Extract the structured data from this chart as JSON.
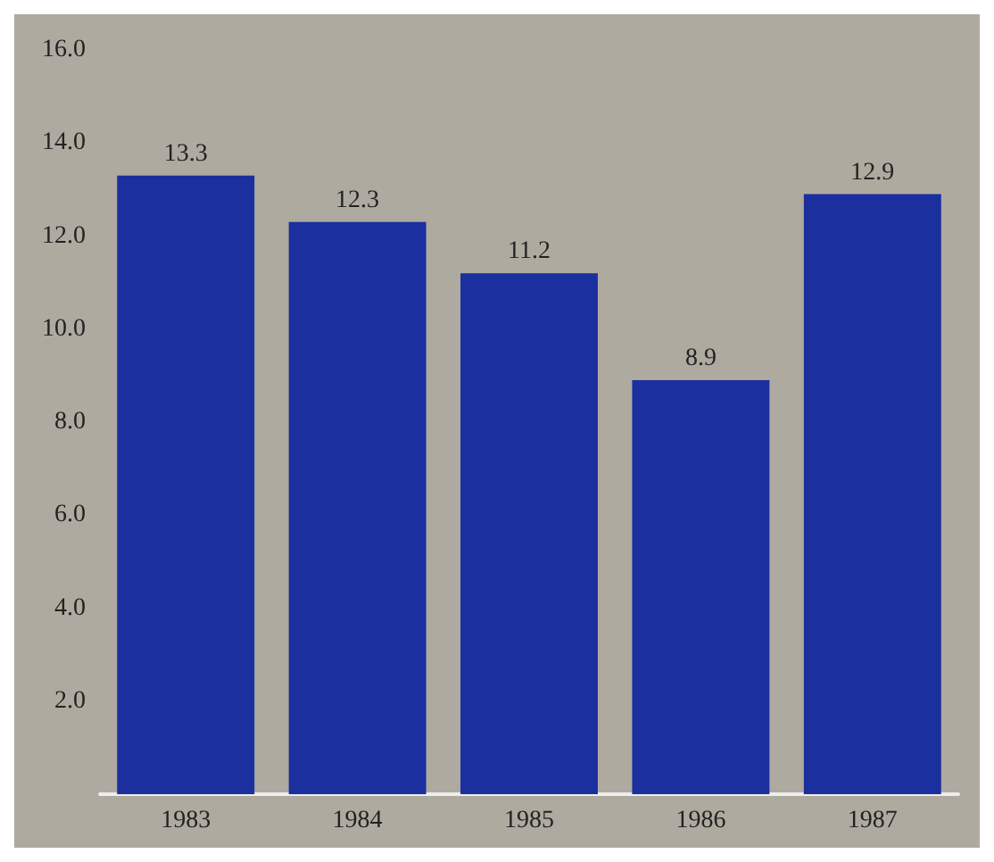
{
  "chart_data": {
    "type": "bar",
    "categories": [
      "1983",
      "1984",
      "1985",
      "1986",
      "1987"
    ],
    "values": [
      13.3,
      12.3,
      11.2,
      8.9,
      12.9
    ],
    "color": "#1b2f9e",
    "data_labels": true,
    "ylim": [
      0,
      16
    ],
    "yticks": [
      {
        "value": 2,
        "label": "2.0"
      },
      {
        "value": 4,
        "label": "4.0"
      },
      {
        "value": 6,
        "label": "6.0"
      },
      {
        "value": 8,
        "label": "8.0"
      },
      {
        "value": 10,
        "label": "10.0"
      },
      {
        "value": 12,
        "label": "12.0"
      },
      {
        "value": 14,
        "label": "14.0"
      },
      {
        "value": 16,
        "label": "16.0"
      }
    ],
    "grid": false
  }
}
